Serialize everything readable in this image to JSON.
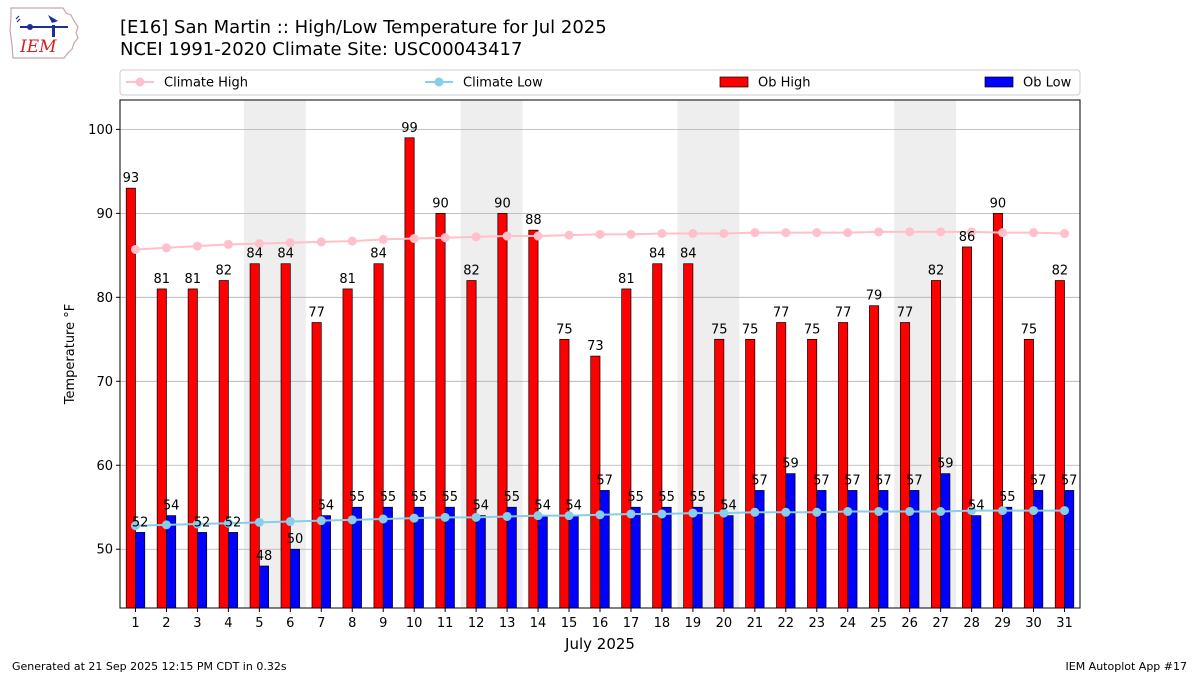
{
  "title_line1": "[E16] San Martin :: High/Low Temperature for Jul 2025",
  "title_line2": "NCEI 1991-2020 Climate Site: USC00043417",
  "logo_text": "IEM",
  "footer_left": "Generated at 21 Sep 2025 12:15 PM CDT in 0.32s",
  "footer_right": "IEM Autoplot App #17",
  "colors": {
    "ob_high": "#ff0000",
    "ob_low": "#0000ff",
    "climate_high": "#ffc0cb",
    "climate_low": "#87ceeb",
    "weekend_shade": "#eeeeee",
    "grid": "#b0b0b0"
  },
  "chart_data": {
    "type": "bar",
    "xlabel": "July 2025",
    "ylabel": "Temperature °F",
    "ylim": [
      43,
      103.5
    ],
    "yticks": [
      50,
      60,
      70,
      80,
      90,
      100
    ],
    "grid": "horizontal",
    "legend_position": "top",
    "categories": [
      1,
      2,
      3,
      4,
      5,
      6,
      7,
      8,
      9,
      10,
      11,
      12,
      13,
      14,
      15,
      16,
      17,
      18,
      19,
      20,
      21,
      22,
      23,
      24,
      25,
      26,
      27,
      28,
      29,
      30,
      31
    ],
    "shaded_days": [
      [
        5,
        6
      ],
      [
        12,
        13
      ],
      [
        19,
        20
      ],
      [
        26,
        27
      ]
    ],
    "series": [
      {
        "name": "Climate High",
        "kind": "line",
        "values": [
          85.7,
          85.9,
          86.1,
          86.3,
          86.4,
          86.5,
          86.6,
          86.7,
          86.9,
          87.0,
          87.1,
          87.2,
          87.3,
          87.3,
          87.4,
          87.5,
          87.5,
          87.6,
          87.6,
          87.6,
          87.7,
          87.7,
          87.7,
          87.7,
          87.8,
          87.8,
          87.8,
          87.8,
          87.7,
          87.7,
          87.6
        ]
      },
      {
        "name": "Climate Low",
        "kind": "line",
        "values": [
          52.8,
          52.9,
          53.0,
          53.1,
          53.2,
          53.3,
          53.4,
          53.5,
          53.6,
          53.7,
          53.8,
          53.8,
          53.9,
          54.0,
          54.0,
          54.1,
          54.2,
          54.2,
          54.3,
          54.3,
          54.4,
          54.4,
          54.4,
          54.5,
          54.5,
          54.5,
          54.5,
          54.6,
          54.6,
          54.6,
          54.6
        ]
      },
      {
        "name": "Ob High",
        "kind": "bar",
        "values": [
          93,
          81,
          81,
          82,
          84,
          84,
          77,
          81,
          84,
          99,
          90,
          82,
          90,
          88,
          75,
          73,
          81,
          84,
          84,
          75,
          75,
          77,
          75,
          77,
          79,
          77,
          82,
          86,
          90,
          75,
          82
        ]
      },
      {
        "name": "Ob Low",
        "kind": "bar",
        "values": [
          52,
          54,
          52,
          52,
          48,
          50,
          54,
          55,
          55,
          55,
          55,
          54,
          55,
          54,
          54,
          57,
          55,
          55,
          55,
          54,
          57,
          59,
          57,
          57,
          57,
          57,
          59,
          54,
          55,
          57,
          57
        ]
      }
    ]
  }
}
